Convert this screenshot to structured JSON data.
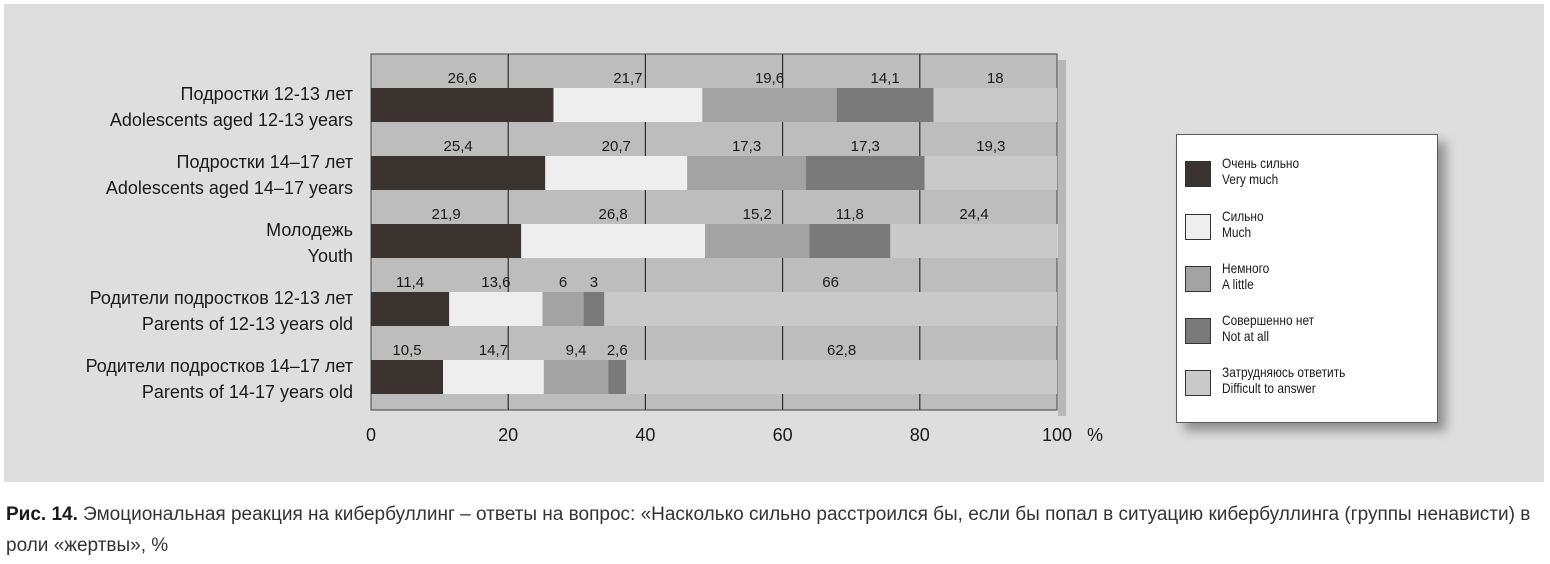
{
  "chart_data": {
    "type": "bar",
    "orientation": "horizontal",
    "stacked": true,
    "categories": [
      {
        "ru": "Подростки 12-13 лет",
        "en": "Adolescents aged 12-13 years"
      },
      {
        "ru": "Подростки 14–17 лет",
        "en": "Adolescents aged 14–17 years"
      },
      {
        "ru": "Молодежь",
        "en": "Youth"
      },
      {
        "ru": "Родители подростков 12-13 лет",
        "en": "Parents of 12-13 years old"
      },
      {
        "ru": "Родители подростков 14–17 лет",
        "en": "Parents of 14-17 years old"
      }
    ],
    "series": [
      {
        "name_ru": "Очень сильно",
        "name_en": "Very much",
        "color": "#3a3330",
        "values": [
          26.6,
          25.4,
          21.9,
          11.4,
          10.5
        ]
      },
      {
        "name_ru": "Сильно",
        "name_en": "Much",
        "color": "#eeeeee",
        "values": [
          21.7,
          20.7,
          26.8,
          13.6,
          14.7
        ]
      },
      {
        "name_ru": "Немного",
        "name_en": "A little",
        "color": "#a3a3a3",
        "values": [
          19.6,
          17.3,
          15.2,
          6,
          9.4
        ]
      },
      {
        "name_ru": "Совершенно нет",
        "name_en": "Not at all",
        "color": "#7a7a7a",
        "values": [
          14.1,
          17.3,
          11.8,
          3,
          2.6
        ]
      },
      {
        "name_ru": "Затрудняюсь ответить",
        "name_en": "Difficult to answer",
        "color": "#c9c9c9",
        "values": [
          18,
          19.3,
          24.4,
          66,
          62.8
        ]
      }
    ],
    "value_labels": [
      [
        "26,6",
        "21,7",
        "19,6",
        "14,1",
        "18"
      ],
      [
        "25,4",
        "20,7",
        "17,3",
        "17,3",
        "19,3"
      ],
      [
        "21,9",
        "26,8",
        "15,2",
        "11,8",
        "24,4"
      ],
      [
        "11,4",
        "13,6",
        "6",
        "3",
        "66"
      ],
      [
        "10,5",
        "14,7",
        "9,4",
        "2,6",
        "62,8"
      ]
    ],
    "xlim": [
      0,
      100
    ],
    "x_ticks": [
      "0",
      "20",
      "40",
      "60",
      "80",
      "100"
    ],
    "x_unit": "%",
    "grid": true,
    "legend_position": "right"
  },
  "caption": {
    "label": "Рис. 14.",
    "text": " Эмоциональная реакция на кибербуллинг – ответы на вопрос: «Насколько сильно расстроился бы, если бы попал в ситуацию кибербуллинга (группы ненависти) в роли «жертвы», %"
  }
}
